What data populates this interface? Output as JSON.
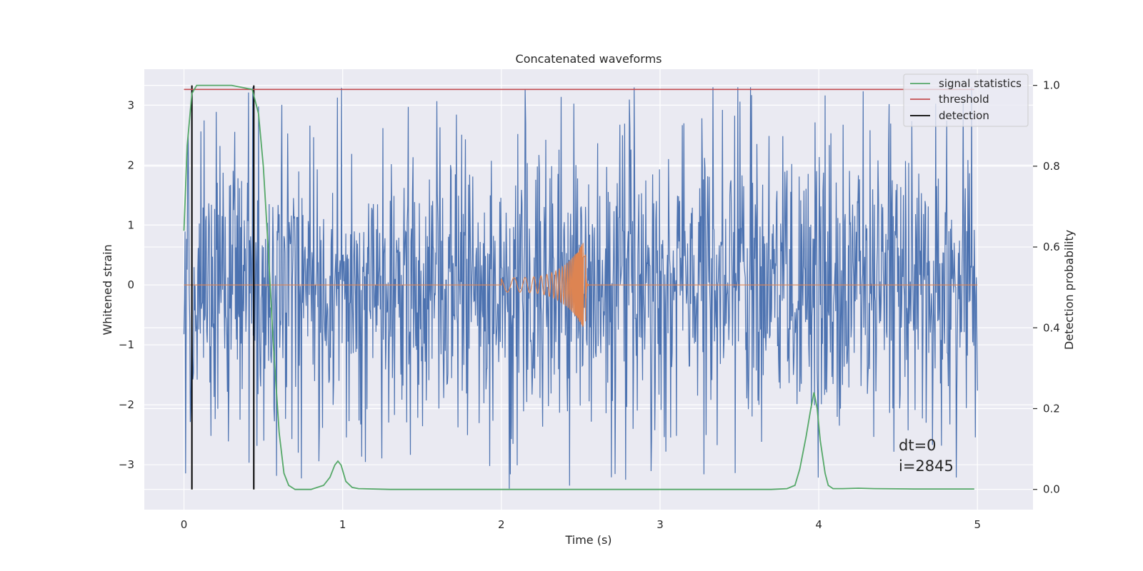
{
  "chart_data": {
    "type": "line",
    "title": "Concatenated waveforms",
    "xlabel": "Time (s)",
    "ylabel": "Whitened strain",
    "ylabel_right": "Detection probability",
    "xlim": [
      -0.25,
      5.35
    ],
    "ylim": [
      -3.75,
      3.6
    ],
    "ylim_right": [
      -0.05,
      1.04
    ],
    "xticks": [
      0,
      1,
      2,
      3,
      4,
      5
    ],
    "xtick_labels": [
      "0",
      "1",
      "2",
      "3",
      "4",
      "5"
    ],
    "yticks": [
      -3,
      -2,
      -1,
      0,
      1,
      2,
      3
    ],
    "ytick_labels": [
      "−3",
      "−2",
      "−1",
      "0",
      "1",
      "2",
      "3"
    ],
    "yticks_right": [
      0.0,
      0.2,
      0.4,
      0.6,
      0.8,
      1.0
    ],
    "ytick_labels_right": [
      "0.0",
      "0.2",
      "0.4",
      "0.6",
      "0.8",
      "1.0"
    ],
    "grid": true,
    "legend_position": "top-right",
    "legend": [
      "signal statistics",
      "threshold",
      "detection"
    ],
    "colors": {
      "background": "#eaeaf2",
      "grid": "#ffffff",
      "noise": "#4c72b0",
      "waveform": "#dd8452",
      "signal_statistics": "#55a868",
      "threshold": "#c44e52",
      "detection": "#000000"
    },
    "series": [
      {
        "name": "signal statistics",
        "axis": "right",
        "x": [
          0,
          0.02,
          0.05,
          0.08,
          0.12,
          0.3,
          0.43,
          0.47,
          0.5,
          0.53,
          0.56,
          0.6,
          0.63,
          0.66,
          0.7,
          0.8,
          0.88,
          0.92,
          0.95,
          0.97,
          0.99,
          1.02,
          1.06,
          1.1,
          1.3,
          2.0,
          3.0,
          3.7,
          3.8,
          3.85,
          3.88,
          3.92,
          3.95,
          3.97,
          3.99,
          4.01,
          4.04,
          4.06,
          4.09,
          4.15,
          4.25,
          4.35,
          4.6,
          4.98
        ],
        "y": [
          0.64,
          0.85,
          0.98,
          1.0,
          1.0,
          1.0,
          0.99,
          0.93,
          0.8,
          0.6,
          0.38,
          0.14,
          0.04,
          0.01,
          0.0,
          0.0,
          0.01,
          0.03,
          0.06,
          0.07,
          0.06,
          0.02,
          0.005,
          0.002,
          0.0,
          0.0,
          0.0,
          0.0,
          0.002,
          0.01,
          0.05,
          0.13,
          0.2,
          0.24,
          0.2,
          0.12,
          0.04,
          0.01,
          0.002,
          0.002,
          0.003,
          0.002,
          0.001,
          0.001
        ]
      },
      {
        "name": "threshold",
        "axis": "right",
        "x": [
          0,
          4.98
        ],
        "y": [
          0.99,
          0.99
        ]
      }
    ],
    "noise": {
      "x_range": [
        0,
        5
      ],
      "envelope": 3.0,
      "max_spike": 3.3,
      "min_spike": -3.4
    },
    "waveform": {
      "x_start": 2.0,
      "x_end": 2.55,
      "peak_time": 2.53,
      "peak_amplitude": 0.78,
      "start_amplitude": 0.12
    },
    "detection_times": [
      0.05,
      0.44
    ],
    "annotations": [
      "dt=0",
      "i=2845"
    ]
  }
}
